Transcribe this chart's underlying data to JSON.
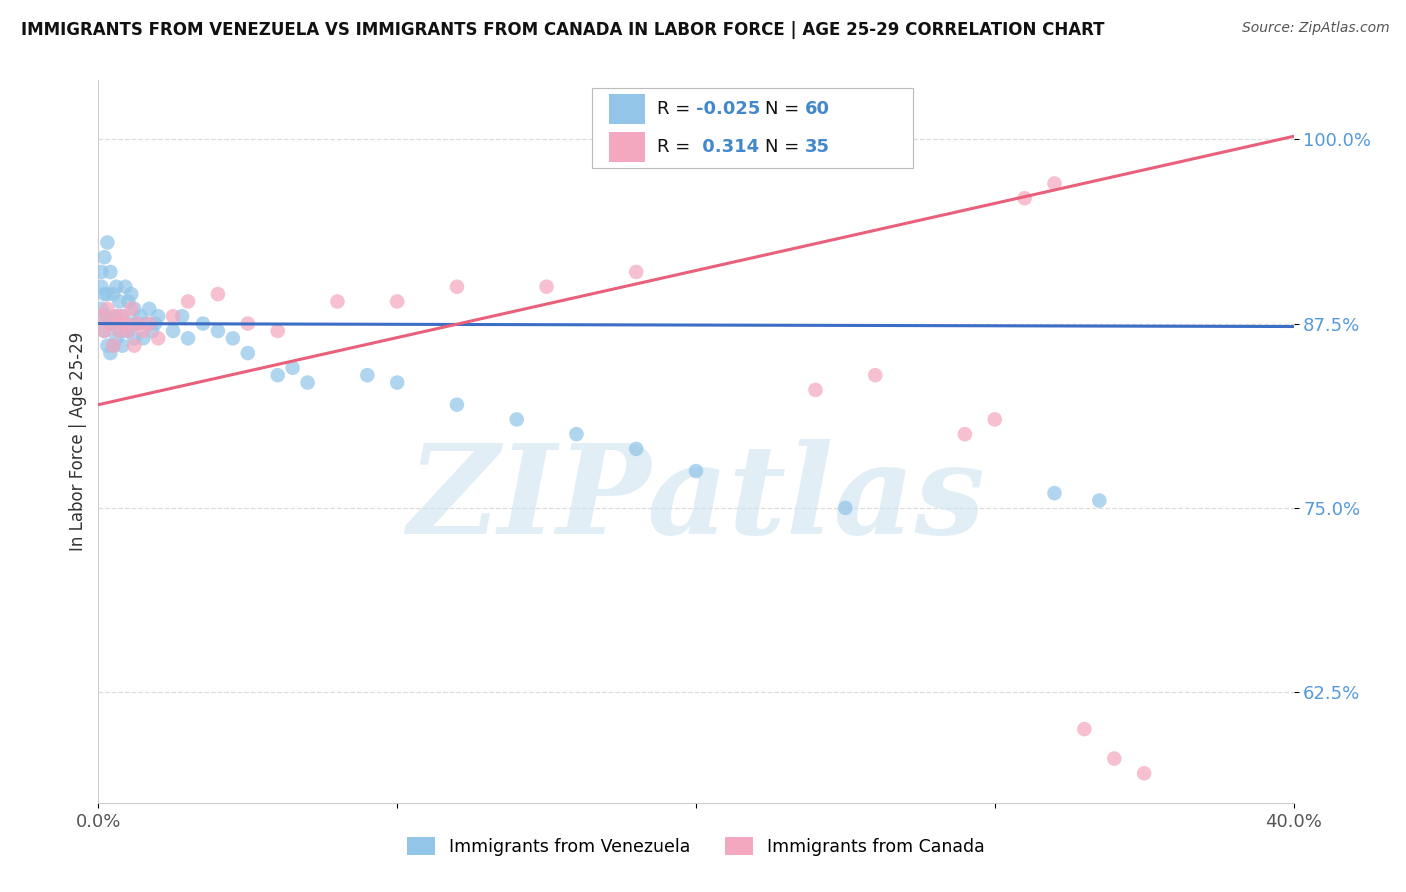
{
  "title": "IMMIGRANTS FROM VENEZUELA VS IMMIGRANTS FROM CANADA IN LABOR FORCE | AGE 25-29 CORRELATION CHART",
  "source": "Source: ZipAtlas.com",
  "ylabel": "In Labor Force | Age 25-29",
  "xlim": [
    0.0,
    0.4
  ],
  "ylim": [
    0.55,
    1.04
  ],
  "yticks": [
    0.625,
    0.75,
    0.875,
    1.0
  ],
  "ytick_labels": [
    "62.5%",
    "75.0%",
    "87.5%",
    "100.0%"
  ],
  "xtick_vals": [
    0.0,
    0.1,
    0.2,
    0.3,
    0.4
  ],
  "xtick_labels": [
    "0.0%",
    "",
    "",
    "",
    "40.0%"
  ],
  "R_venezuela": -0.025,
  "N_venezuela": 60,
  "R_canada": 0.314,
  "N_canada": 35,
  "color_venezuela": "#92C5E8",
  "color_canada": "#F4A8C0",
  "line_color_venezuela": "#3B6EC4",
  "line_color_canada": "#E8607A",
  "background_color": "#FFFFFF",
  "watermark": "ZIPatlas",
  "legend_label_venezuela": "Immigrants from Venezuela",
  "legend_label_canada": "Immigrants from Canada",
  "r_text_color": "#4488CC",
  "n_text_color": "#4488CC",
  "label_text_color": "#111111",
  "grid_color": "#DDDDDD",
  "ytick_color": "#5599DD",
  "xtick_color": "#555555"
}
